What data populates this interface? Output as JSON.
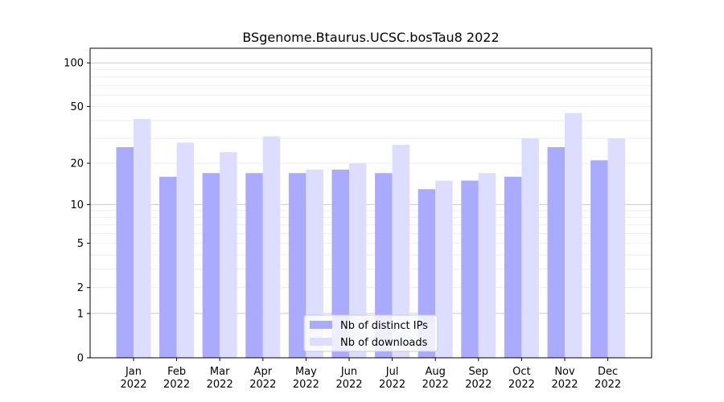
{
  "chart_data": {
    "type": "bar",
    "title": "BSgenome.Btaurus.UCSC.bosTau8 2022",
    "xlabel": "",
    "ylabel": "",
    "yscale": "symlog",
    "ylim": [
      0,
      120
    ],
    "yticks": [
      "0",
      "1",
      "2",
      "5",
      "10",
      "20",
      "50",
      "100"
    ],
    "grid": true,
    "legend_position": "bottom-center",
    "categories": [
      "Jan\n2022",
      "Feb\n2022",
      "Mar\n2022",
      "Apr\n2022",
      "May\n2022",
      "Jun\n2022",
      "Jul\n2022",
      "Aug\n2022",
      "Sep\n2022",
      "Oct\n2022",
      "Nov\n2022",
      "Dec\n2022"
    ],
    "series": [
      {
        "name": "Nb of distinct IPs",
        "color": "#aaaaff",
        "values": [
          26,
          16,
          17,
          17,
          17,
          18,
          17,
          13,
          15,
          16,
          26,
          21
        ]
      },
      {
        "name": "Nb of downloads",
        "color": "#ddddff",
        "values": [
          41,
          28,
          24,
          31,
          18,
          20,
          27,
          15,
          17,
          30,
          45,
          30
        ]
      }
    ]
  }
}
